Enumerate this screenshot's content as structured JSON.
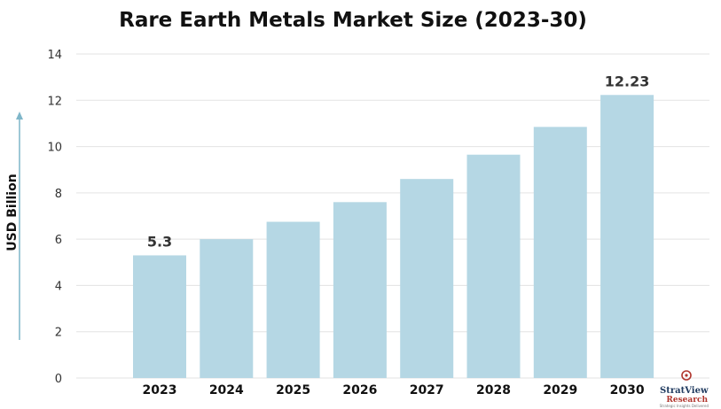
{
  "chart_data": {
    "type": "bar",
    "title": "Rare Earth Metals Market Size (2023-30)",
    "ylabel": "USD Billion",
    "xlabel": "",
    "categories": [
      "2023",
      "2024",
      "2025",
      "2026",
      "2027",
      "2028",
      "2029",
      "2030"
    ],
    "values": [
      5.3,
      6.0,
      6.75,
      7.6,
      8.6,
      9.65,
      10.85,
      12.23
    ],
    "data_labels": [
      {
        "index": 0,
        "text": "5.3"
      },
      {
        "index": 7,
        "text": "12.23"
      }
    ],
    "ylim": [
      0,
      14
    ],
    "yticks": [
      "0",
      "2",
      "4",
      "6",
      "8",
      "10",
      "12",
      "14"
    ],
    "grid": true,
    "bar_color": "#b5d7e4",
    "axis_arrow_color": "#7fb6c9"
  },
  "logo": {
    "name_part1": "Strat",
    "name_part2": "View",
    "subtitle": "Research",
    "tagline": "Strategic Insights Delivered",
    "mark_color": "#b0362e"
  }
}
